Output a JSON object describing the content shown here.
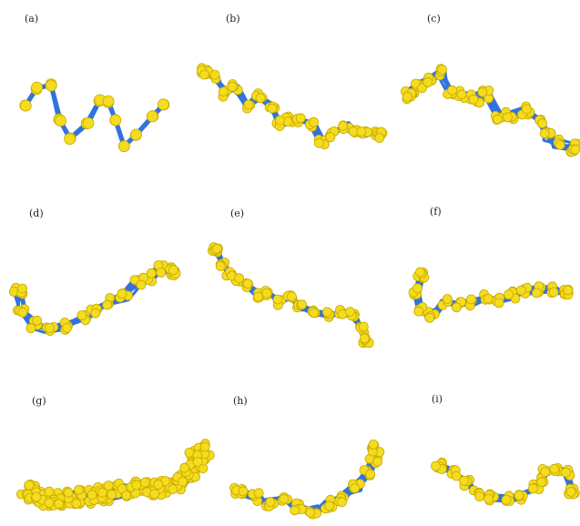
{
  "figure": {
    "stroke_color": "#2f73e0",
    "bead_color": "#f4dc1e",
    "bead_edge_color": "#c9a900",
    "panels": [
      {
        "id": "a",
        "label": "(a)"
      },
      {
        "id": "b",
        "label": "(b)"
      },
      {
        "id": "c",
        "label": "(c)"
      },
      {
        "id": "d",
        "label": "(d)"
      },
      {
        "id": "e",
        "label": "(e)"
      },
      {
        "id": "f",
        "label": "(f)"
      },
      {
        "id": "g",
        "label": "(g)"
      },
      {
        "id": "h",
        "label": "(h)"
      },
      {
        "id": "i",
        "label": "(i)"
      }
    ]
  }
}
